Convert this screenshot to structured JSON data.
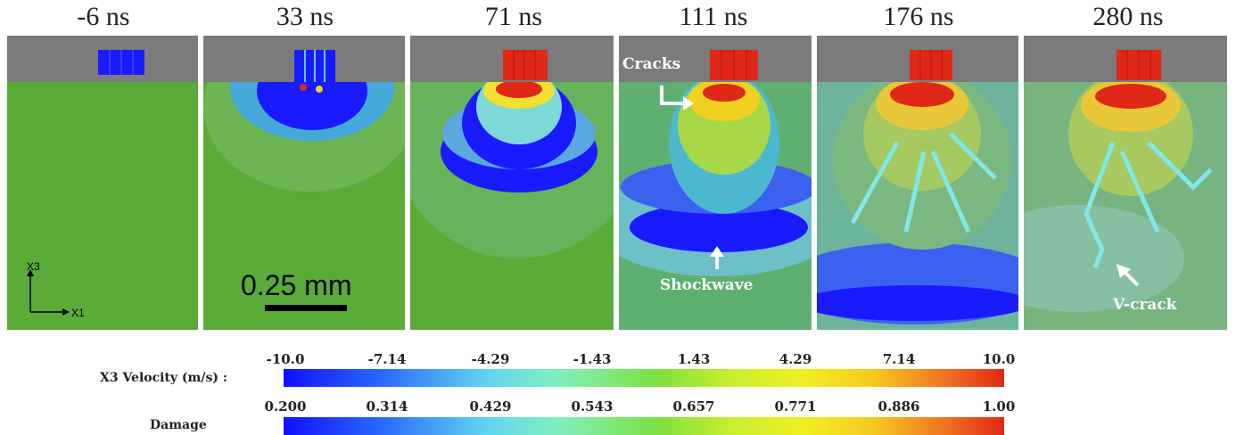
{
  "panels": [
    {
      "time": "-6 ns"
    },
    {
      "time": "33 ns"
    },
    {
      "time": "71 ns"
    },
    {
      "time": "111 ns"
    },
    {
      "time": "176 ns"
    },
    {
      "time": "280 ns"
    }
  ],
  "axes": {
    "x": "X1",
    "y": "X3"
  },
  "scale_bar": "0.25 mm",
  "annotations": {
    "cracks": "Cracks",
    "shockwave": "Shockwave",
    "vcrack": "V-crack"
  },
  "colorbars": [
    {
      "label": "X3 Velocity (m/s) :",
      "ticks": [
        "-10.0",
        "-7.14",
        "-4.29",
        "-1.43",
        "1.43",
        "4.29",
        "7.14",
        "10.0"
      ]
    },
    {
      "label": "Damage",
      "ticks": [
        "0.200",
        "0.314",
        "0.429",
        "0.543",
        "0.657",
        "0.771",
        "0.886",
        "1.00"
      ]
    }
  ],
  "colors": {
    "substrate": "#5aab37",
    "cover": "#7b7b7b",
    "low": "#1a1aff",
    "high": "#e02818",
    "mid": "#7fe0c0"
  }
}
